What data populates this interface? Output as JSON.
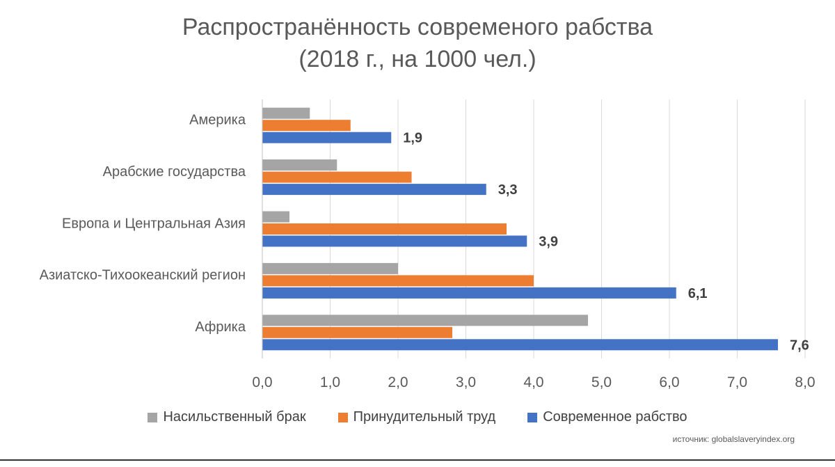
{
  "chart_data": {
    "type": "bar",
    "orientation": "horizontal",
    "title": "Распространённость современого рабства",
    "subtitle": "(2018 г., на 1000 чел.)",
    "categories": [
      "Америка",
      "Арабские государства",
      "Европа и Центральная Азия",
      "Азиатско-Тихоокеанский регион",
      "Африка"
    ],
    "series": [
      {
        "name": "Насильственный брак",
        "color": "#a5a5a5",
        "values": [
          0.7,
          1.1,
          0.4,
          2.0,
          4.8
        ]
      },
      {
        "name": "Принудительный труд",
        "color": "#ed7d31",
        "values": [
          1.3,
          2.2,
          3.6,
          4.0,
          2.8
        ]
      },
      {
        "name": "Современное рабство",
        "color": "#4472c4",
        "values": [
          1.9,
          3.3,
          3.9,
          6.1,
          7.6
        ]
      }
    ],
    "data_labels": {
      "series": "Современное рабство",
      "values": [
        "1,9",
        "3,3",
        "3,9",
        "6,1",
        "7,6"
      ]
    },
    "xlim": [
      0,
      8
    ],
    "xticks": [
      "0,0",
      "1,0",
      "2,0",
      "3,0",
      "4,0",
      "5,0",
      "6,0",
      "7,0",
      "8,0"
    ],
    "grid": true,
    "legend_position": "bottom"
  },
  "source_note": "источник: globalslaveryindex.org"
}
